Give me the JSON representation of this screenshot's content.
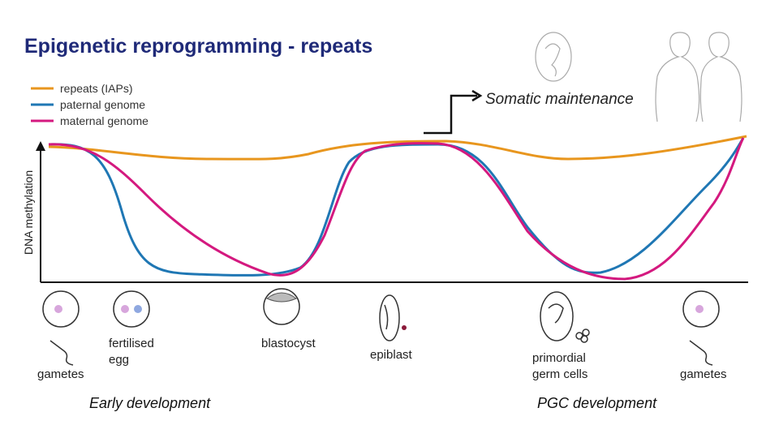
{
  "header": {
    "title": "Epigenetic reprogramming - repeats"
  },
  "legend": [
    "repeats (IAPs)",
    "paternal genome",
    "maternal genome"
  ],
  "axis": {
    "y_label": "DNA methylation"
  },
  "annotation": "Somatic maintenance",
  "stages": [
    {
      "lines": [
        "gametes"
      ]
    },
    {
      "lines": [
        "fertilised",
        "egg"
      ]
    },
    {
      "lines": [
        "blastocyst"
      ]
    },
    {
      "lines": [
        "epiblast"
      ]
    },
    {
      "lines": [
        "primordial",
        "germ cells"
      ]
    },
    {
      "lines": [
        "gametes"
      ]
    }
  ],
  "phases": [
    "Early development",
    "PGC development"
  ]
}
